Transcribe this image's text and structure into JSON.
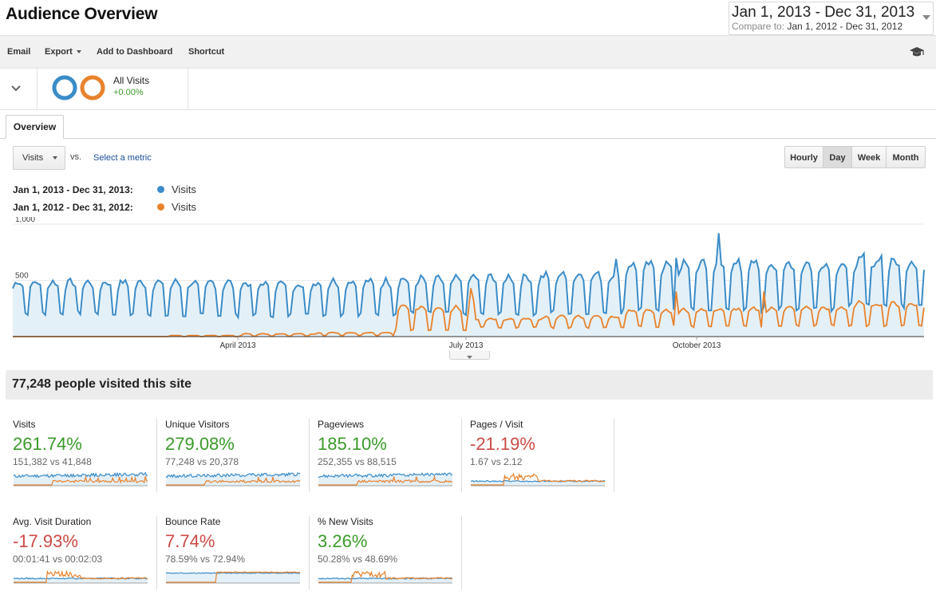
{
  "page_title": "Audience Overview",
  "date_range": {
    "main": "Jan 1, 2013 - Dec 31, 2013",
    "compare_label": "Compare to:",
    "compare_value": "Jan 1, 2012 - Dec 31, 2012"
  },
  "toolbar": {
    "email": "Email",
    "export": "Export",
    "add_to_dashboard": "Add to Dashboard",
    "shortcut": "Shortcut"
  },
  "segment": {
    "name": "All Visits",
    "pct": "+0.00%"
  },
  "tabs": {
    "overview": "Overview"
  },
  "controls": {
    "metric": "Visits",
    "vs": "vs.",
    "select_metric": "Select a metric",
    "granularity": [
      "Hourly",
      "Day",
      "Week",
      "Month"
    ],
    "active_granularity": "Day"
  },
  "legend": [
    {
      "range": "Jan 1, 2013 - Dec 31, 2013:",
      "metric": "Visits",
      "color": "#3b8cc8"
    },
    {
      "range": "Jan 1, 2012 - Dec 31, 2012:",
      "metric": "Visits",
      "color": "#e8822c"
    }
  ],
  "colors": {
    "current": "#3b8cc8",
    "previous": "#e8822c",
    "positive": "#3a9a2a",
    "negative": "#cc4a45",
    "link": "#1a4e9a"
  },
  "chart_data": {
    "type": "area",
    "x_tick_labels": [
      "April 2013",
      "July 2013",
      "October 2013"
    ],
    "y_tick_labels": [
      "1,000",
      "500"
    ],
    "ylim": [
      0,
      1000
    ],
    "grid": true,
    "series": [
      {
        "name": "Visits",
        "range": "Jan 1, 2013 - Dec 31, 2013",
        "weekday_peak_by_month": [
          490,
          490,
          490,
          480,
          500,
          520,
          540,
          560,
          650,
          660,
          660,
          680
        ],
        "weekend_low_by_month": [
          210,
          200,
          190,
          190,
          200,
          210,
          200,
          220,
          250,
          240,
          250,
          280
        ],
        "spike_max": 920
      },
      {
        "name": "Visits",
        "range": "Jan 1, 2012 - Dec 31, 2012",
        "weekday_peak_by_month": [
          0,
          0,
          10,
          25,
          35,
          270,
          160,
          180,
          240,
          250,
          260,
          300
        ],
        "weekend_low_by_month": [
          0,
          0,
          0,
          5,
          10,
          60,
          80,
          80,
          90,
          90,
          100,
          100
        ],
        "spike_max": 430
      }
    ]
  },
  "summary": "77,248 people visited this site",
  "metrics": [
    {
      "name": "Visits",
      "pct": "261.74%",
      "compare": "151,382 vs 41,848",
      "positive": true,
      "spark": "volume"
    },
    {
      "name": "Unique Visitors",
      "pct": "279.08%",
      "compare": "77,248 vs 20,378",
      "positive": true,
      "spark": "volume"
    },
    {
      "name": "Pageviews",
      "pct": "185.10%",
      "compare": "252,355 vs 88,515",
      "positive": true,
      "spark": "volume"
    },
    {
      "name": "Pages / Visit",
      "pct": "-21.19%",
      "compare": "1.67 vs 2.12",
      "positive": false,
      "spark": "ratio"
    },
    {
      "name": "Avg. Visit Duration",
      "pct": "-17.93%",
      "compare": "00:01:41 vs 00:02:03",
      "positive": false,
      "spark": "ratio"
    },
    {
      "name": "Bounce Rate",
      "pct": "7.74%",
      "compare": "78.59% vs 72.94%",
      "positive": false,
      "spark": "flat"
    },
    {
      "name": "% New Visits",
      "pct": "3.26%",
      "compare": "50.28% vs 48.69%",
      "positive": true,
      "spark": "ratio"
    }
  ]
}
